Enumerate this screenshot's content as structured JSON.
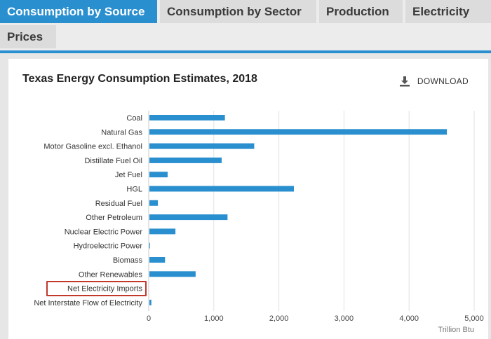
{
  "tabs": [
    {
      "label": "Consumption by Source",
      "active": true
    },
    {
      "label": "Consumption by Sector",
      "active": false
    },
    {
      "label": "Production",
      "active": false
    },
    {
      "label": "Electricity",
      "active": false
    },
    {
      "label": "Prices",
      "active": false
    }
  ],
  "card": {
    "title": "Texas Energy Consumption Estimates, 2018",
    "download_label": "DOWNLOAD",
    "download_icon": "download-icon"
  },
  "highlight": {
    "label": "Net Electricity Imports",
    "color": "#c0392b"
  },
  "colors": {
    "accent": "#2a8fcf",
    "bar": "#2a8fcf",
    "grid": "#e2e2e2"
  },
  "chart_data": {
    "type": "bar",
    "orientation": "horizontal",
    "title": "Texas Energy Consumption Estimates, 2018",
    "xlabel": "Trillion Btu",
    "ylabel": "",
    "xlim": [
      0,
      5000
    ],
    "xticks": [
      0,
      1000,
      2000,
      3000,
      4000,
      5000
    ],
    "xtick_labels": [
      "0",
      "1,000",
      "2,000",
      "3,000",
      "4,000",
      "5,000"
    ],
    "categories": [
      "Coal",
      "Natural Gas",
      "Motor Gasoline excl. Ethanol",
      "Distillate Fuel Oil",
      "Jet Fuel",
      "HGL",
      "Residual Fuel",
      "Other Petroleum",
      "Nuclear Electric Power",
      "Hydroelectric Power",
      "Biomass",
      "Other Renewables",
      "Net Electricity Imports",
      "Net Interstate Flow of Electricity"
    ],
    "values": [
      1160,
      4570,
      1610,
      1110,
      280,
      2220,
      130,
      1200,
      400,
      10,
      240,
      710,
      0,
      30
    ],
    "grid": true
  }
}
